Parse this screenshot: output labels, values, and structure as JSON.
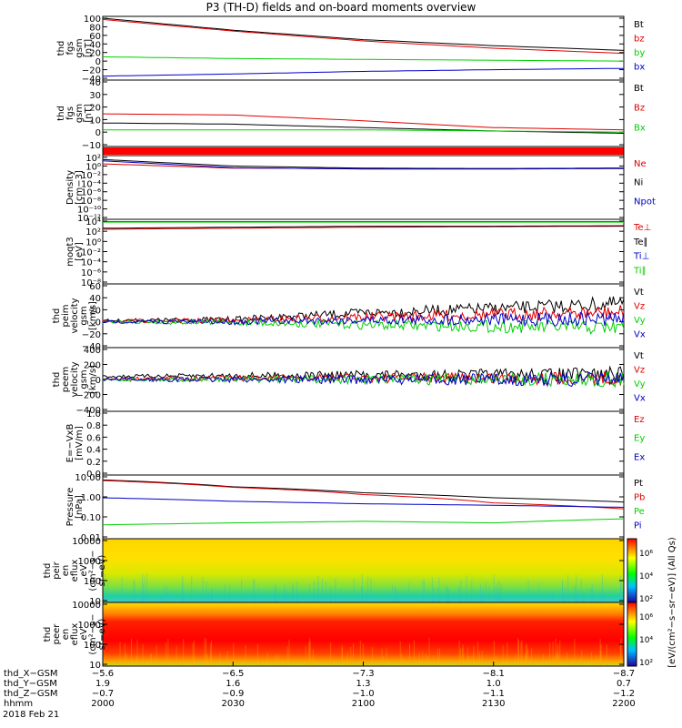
{
  "title": "P3 (TH-D) fields and on-board moments overview",
  "colors": {
    "black": "#000000",
    "red": "#e00000",
    "green": "#00d000",
    "blue": "#0000c8"
  },
  "chart_data": [
    {
      "type": "line",
      "id": "fgs",
      "ylabel": [
        "thd",
        "fgs",
        "gsm",
        "[nT]"
      ],
      "yticks": [
        "100",
        "80",
        "60",
        "40",
        "20",
        "0",
        "−20",
        "−40"
      ],
      "ylim": [
        -40,
        100
      ],
      "series": [
        {
          "name": "Bt",
          "color": "black",
          "x": [
            2000,
            2030,
            2100,
            2130,
            2200
          ],
          "y": [
            100,
            72,
            50,
            36,
            25
          ]
        },
        {
          "name": "bz",
          "color": "red",
          "x": [
            2000,
            2030,
            2100,
            2130,
            2200
          ],
          "y": [
            97,
            70,
            47,
            30,
            18
          ]
        },
        {
          "name": "by",
          "color": "green",
          "x": [
            2000,
            2030,
            2100,
            2130,
            2200
          ],
          "y": [
            10,
            6,
            4,
            2,
            0
          ]
        },
        {
          "name": "bx",
          "color": "blue",
          "x": [
            2000,
            2030,
            2100,
            2130,
            2200
          ],
          "y": [
            -35,
            -30,
            -24,
            -20,
            -17
          ]
        }
      ]
    },
    {
      "type": "line",
      "id": "fgs_dsl",
      "ylabel": [
        "thd",
        "fgs",
        "gsm",
        "[nT]"
      ],
      "yticks": [
        "40",
        "30",
        "20",
        "10",
        "0",
        "−10"
      ],
      "ylim": [
        -15,
        40
      ],
      "series": [
        {
          "name": "Bt",
          "color": "black",
          "x": [
            2000,
            2030,
            2100,
            2130,
            2200
          ],
          "y": [
            4,
            3,
            0,
            -3,
            -5
          ]
        },
        {
          "name": "Bz",
          "color": "red",
          "x": [
            2000,
            2030,
            2100,
            2130,
            2200
          ],
          "y": [
            12,
            11,
            6,
            0,
            -2
          ]
        },
        {
          "name": "Bx",
          "color": "green",
          "x": [
            2000,
            2030,
            2100,
            2130,
            2200
          ],
          "y": [
            -2,
            -2,
            -2,
            -3,
            -4
          ]
        }
      ]
    },
    {
      "type": "line",
      "id": "density",
      "ylabel": [
        "Density",
        "[cm−3]"
      ],
      "yticks": [
        "10²",
        "10⁰",
        "10⁻²",
        "10⁻⁴",
        "10⁻⁶",
        "10⁻⁸",
        "10⁻¹⁰",
        "10⁻¹²"
      ],
      "ylim": [
        -12,
        2
      ],
      "series": [
        {
          "name": "Ne",
          "color": "red",
          "x": [
            2000,
            2030,
            2100,
            2130,
            2200
          ],
          "y": [
            0.5,
            -0.5,
            -0.6,
            -0.6,
            -0.5
          ]
        },
        {
          "name": "Ni",
          "color": "black",
          "x": [
            2000,
            2030,
            2100,
            2130,
            2200
          ],
          "y": [
            1.5,
            0,
            -0.5,
            -0.6,
            -0.5
          ]
        },
        {
          "name": "Npot",
          "color": "blue",
          "x": [
            2000,
            2030,
            2100,
            2130,
            2200
          ],
          "y": [
            1.2,
            -0.4,
            -0.7,
            -0.7,
            -0.6
          ]
        }
      ]
    },
    {
      "type": "line",
      "id": "moqt",
      "ylabel": [
        "moqt3",
        "[eV]"
      ],
      "yticks": [
        "10⁴",
        "10²",
        "10⁰",
        "10⁻²",
        "10⁻⁴",
        "10⁻⁶",
        "10⁻⁸"
      ],
      "ylim": [
        -8,
        4
      ],
      "series": [
        {
          "name": "Te⊥",
          "color": "red",
          "x": [
            2000,
            2030,
            2100,
            2130,
            2200
          ],
          "y": [
            2.4,
            2.6,
            2.8,
            2.9,
            3.0
          ]
        },
        {
          "name": "Te∥",
          "color": "black",
          "x": [
            2000,
            2030,
            2100,
            2130,
            2200
          ],
          "y": [
            2.6,
            2.8,
            3.0,
            3.0,
            3.1
          ]
        },
        {
          "name": "Ti⊥",
          "color": "blue",
          "x": [
            2000,
            2030,
            2100,
            2130,
            2200
          ],
          "y": [
            3.9,
            3.9,
            3.9,
            3.9,
            3.9
          ]
        },
        {
          "name": "Ti∥",
          "color": "green",
          "x": [
            2000,
            2030,
            2100,
            2130,
            2200
          ],
          "y": [
            3.8,
            3.8,
            3.8,
            3.8,
            3.8
          ]
        }
      ]
    },
    {
      "type": "line",
      "id": "peim",
      "ylabel": [
        "thd",
        "peim",
        "velocity",
        "gsm",
        "[km/s]"
      ],
      "yticks": [
        "60",
        "40",
        "20",
        "0",
        "−20",
        "−40"
      ],
      "ylim": [
        -40,
        60
      ],
      "series": [
        {
          "name": "Vt",
          "color": "black",
          "x": [
            2000,
            2030,
            2100,
            2130,
            2200
          ],
          "y": [
            2,
            4,
            15,
            22,
            30
          ]
        },
        {
          "name": "Vz",
          "color": "red",
          "x": [
            2000,
            2030,
            2100,
            2130,
            2200
          ],
          "y": [
            1,
            2,
            8,
            12,
            15
          ]
        },
        {
          "name": "Vy",
          "color": "green",
          "x": [
            2000,
            2030,
            2100,
            2130,
            2200
          ],
          "y": [
            0,
            -1,
            -5,
            -8,
            -10
          ]
        },
        {
          "name": "Vx",
          "color": "blue",
          "x": [
            2000,
            2030,
            2100,
            2130,
            2200
          ],
          "y": [
            0,
            0,
            3,
            4,
            5
          ]
        }
      ]
    },
    {
      "type": "line",
      "id": "peem",
      "ylabel": [
        "thd",
        "peem",
        "velocity",
        "gsm",
        "[km/s]"
      ],
      "yticks": [
        "400",
        "200",
        "0",
        "−200",
        "−400"
      ],
      "ylim": [
        -400,
        400
      ],
      "series": [
        {
          "name": "Vt",
          "color": "black",
          "x": [
            2000,
            2030,
            2100,
            2130,
            2200
          ],
          "y": [
            40,
            50,
            60,
            60,
            70
          ]
        },
        {
          "name": "Vz",
          "color": "red",
          "x": [
            2000,
            2030,
            2100,
            2130,
            2200
          ],
          "y": [
            10,
            15,
            20,
            20,
            20
          ]
        },
        {
          "name": "Vy",
          "color": "green",
          "x": [
            2000,
            2030,
            2100,
            2130,
            2200
          ],
          "y": [
            -5,
            0,
            0,
            0,
            0
          ]
        },
        {
          "name": "Vx",
          "color": "blue",
          "x": [
            2000,
            2030,
            2100,
            2130,
            2200
          ],
          "y": [
            0,
            0,
            0,
            0,
            0
          ]
        }
      ]
    },
    {
      "type": "line",
      "id": "efield",
      "ylabel": [
        "E=−VxB",
        "[mV/m]"
      ],
      "yticks": [
        "1.0",
        "0.8",
        "0.6",
        "0.4",
        "0.2",
        "0.0"
      ],
      "ylim": [
        0,
        1
      ],
      "series": [
        {
          "name": "Ez",
          "color": "red",
          "x": [],
          "y": []
        },
        {
          "name": "Ey",
          "color": "green",
          "x": [],
          "y": []
        },
        {
          "name": "Ex",
          "color": "blue",
          "x": [],
          "y": []
        }
      ]
    },
    {
      "type": "line",
      "id": "pressure",
      "log": true,
      "ylabel": [
        "Pressure",
        "[nPa]"
      ],
      "yticks": [
        "10.00",
        "1.00",
        "0.10",
        "0.01"
      ],
      "ylim": [
        0.01,
        10
      ],
      "series": [
        {
          "name": "Pt",
          "color": "black",
          "x": [
            2000,
            2030,
            2100,
            2130,
            2200
          ],
          "y": [
            7,
            3.2,
            1.6,
            0.9,
            0.55
          ]
        },
        {
          "name": "Pb",
          "color": "red",
          "x": [
            2000,
            2030,
            2100,
            2130,
            2200
          ],
          "y": [
            6.5,
            3.0,
            1.3,
            0.5,
            0.25
          ]
        },
        {
          "name": "Pe",
          "color": "green",
          "x": [
            2000,
            2030,
            2100,
            2130,
            2200
          ],
          "y": [
            0.04,
            0.05,
            0.06,
            0.05,
            0.08
          ]
        },
        {
          "name": "Pi",
          "color": "blue",
          "x": [
            2000,
            2030,
            2100,
            2130,
            2200
          ],
          "y": [
            0.9,
            0.6,
            0.45,
            0.38,
            0.3
          ]
        }
      ]
    },
    {
      "type": "heatmap",
      "id": "peir",
      "ylabel": [
        "thd",
        "peir",
        "en",
        "eflux",
        "eV",
        "(cm²−s−",
        "sr−eV)"
      ],
      "yticks": [
        "10000",
        "1000",
        "100",
        "10"
      ],
      "ylim": [
        5,
        20000
      ]
    },
    {
      "type": "heatmap",
      "id": "peer",
      "ylabel": [
        "thd",
        "peer",
        "en",
        "eflux",
        "eV",
        "(cm²−s−",
        "sr−eV)"
      ],
      "yticks": [
        "10000",
        "1000",
        "100",
        "10"
      ],
      "ylim": [
        5,
        20000
      ]
    }
  ],
  "colorbar": {
    "label": "[eV/(cm²−s−sr−eV)] (All Qs)",
    "ticks1": [
      "10⁶",
      "10⁴",
      "10²"
    ],
    "ticks2": [
      "10⁶",
      "10⁴",
      "10²"
    ]
  },
  "xaxis": {
    "rows": [
      {
        "label": "thd_X−GSM",
        "values": [
          "−5.6",
          "−6.5",
          "−7.3",
          "−8.1",
          "−8.7"
        ]
      },
      {
        "label": "thd_Y−GSM",
        "values": [
          "1.9",
          "1.6",
          "1.3",
          "1.0",
          "0.7"
        ]
      },
      {
        "label": "thd_Z−GSM",
        "values": [
          "−0.7",
          "−0.9",
          "−1.0",
          "−1.1",
          "−1.2"
        ]
      },
      {
        "label": "hhmm",
        "values": [
          "2000",
          "2030",
          "2100",
          "2130",
          "2200"
        ]
      }
    ],
    "date": "2018 Feb 21"
  }
}
